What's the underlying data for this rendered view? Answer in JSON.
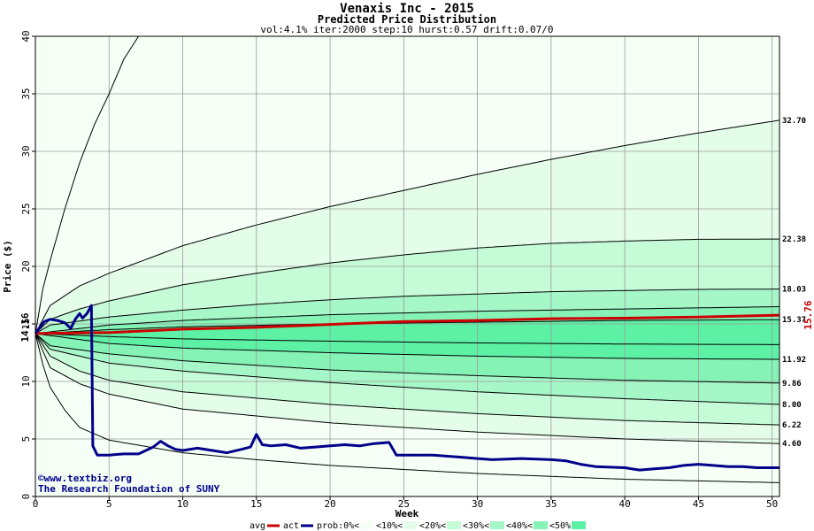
{
  "chart_data": {
    "type": "area",
    "title": "Venaxis Inc - 2015",
    "subtitle": "Predicted Price Distribution",
    "params": "vol:4.1% iter:2000 step:10 hurst:0.57 drift:0.07/0",
    "xlabel": "Week",
    "ylabel": "Price ($)",
    "xlim": [
      0,
      50.5
    ],
    "ylim": [
      0,
      40
    ],
    "x_ticks": [
      0,
      5,
      10,
      15,
      20,
      25,
      30,
      35,
      40,
      45,
      50
    ],
    "y_ticks": [
      0,
      5,
      10,
      15,
      20,
      25,
      30,
      35,
      40
    ],
    "grid": true,
    "start_price_label": "14.16",
    "start_price": 14.16,
    "actual_last_label": "15.76",
    "band_colors": [
      "#f5fff5",
      "#e3fde9",
      "#c6fbd8",
      "#a6f7c8",
      "#86f3b6",
      "#5cf1a4"
    ],
    "percentile_curves": [
      {
        "label": "",
        "points": [
          [
            0,
            14.16
          ],
          [
            0.5,
            18
          ],
          [
            1,
            20.5
          ],
          [
            2,
            25
          ],
          [
            3,
            29
          ],
          [
            4,
            32.3
          ],
          [
            5,
            35
          ],
          [
            6,
            38
          ],
          [
            7,
            40
          ]
        ]
      },
      {
        "label": "32.70",
        "points": [
          [
            0,
            14.16
          ],
          [
            1,
            16.6
          ],
          [
            3,
            18.3
          ],
          [
            5,
            19.4
          ],
          [
            10,
            21.8
          ],
          [
            15,
            23.6
          ],
          [
            20,
            25.2
          ],
          [
            25,
            26.6
          ],
          [
            30,
            28
          ],
          [
            35,
            29.3
          ],
          [
            40,
            30.5
          ],
          [
            45,
            31.6
          ],
          [
            50.5,
            32.7
          ]
        ]
      },
      {
        "label": "22.38",
        "points": [
          [
            0,
            14.16
          ],
          [
            1,
            15.4
          ],
          [
            3,
            16.3
          ],
          [
            5,
            17
          ],
          [
            10,
            18.4
          ],
          [
            15,
            19.4
          ],
          [
            20,
            20.3
          ],
          [
            25,
            21
          ],
          [
            30,
            21.6
          ],
          [
            35,
            22
          ],
          [
            40,
            22.2
          ],
          [
            45,
            22.35
          ],
          [
            50.5,
            22.38
          ]
        ]
      },
      {
        "label": "18.03",
        "points": [
          [
            0,
            14.16
          ],
          [
            1,
            14.9
          ],
          [
            5,
            15.6
          ],
          [
            10,
            16.2
          ],
          [
            15,
            16.7
          ],
          [
            20,
            17.1
          ],
          [
            25,
            17.4
          ],
          [
            30,
            17.6
          ],
          [
            35,
            17.8
          ],
          [
            40,
            17.9
          ],
          [
            45,
            18
          ],
          [
            50.5,
            18.03
          ]
        ]
      },
      {
        "label": "",
        "points": [
          [
            0,
            14.16
          ],
          [
            5,
            14.9
          ],
          [
            10,
            15.3
          ],
          [
            20,
            15.8
          ],
          [
            30,
            16.1
          ],
          [
            40,
            16.3
          ],
          [
            50.5,
            16.5
          ]
        ]
      },
      {
        "label": "15.37",
        "points": [
          [
            0,
            14.16
          ],
          [
            5,
            14.5
          ],
          [
            10,
            14.75
          ],
          [
            20,
            15
          ],
          [
            30,
            15.15
          ],
          [
            40,
            15.3
          ],
          [
            50.5,
            15.37
          ]
        ]
      },
      {
        "label": "",
        "points": [
          [
            0,
            14.16
          ],
          [
            5,
            13.9
          ],
          [
            10,
            13.7
          ],
          [
            20,
            13.5
          ],
          [
            30,
            13.35
          ],
          [
            40,
            13.25
          ],
          [
            50.5,
            13.2
          ]
        ]
      },
      {
        "label": "11.92",
        "points": [
          [
            0,
            14.16
          ],
          [
            5,
            13.3
          ],
          [
            10,
            12.9
          ],
          [
            20,
            12.5
          ],
          [
            30,
            12.2
          ],
          [
            40,
            12
          ],
          [
            50.5,
            11.92
          ]
        ]
      },
      {
        "label": "9.86",
        "points": [
          [
            0,
            14.16
          ],
          [
            1,
            13.1
          ],
          [
            5,
            12.4
          ],
          [
            10,
            11.8
          ],
          [
            20,
            11
          ],
          [
            30,
            10.5
          ],
          [
            40,
            10.1
          ],
          [
            50.5,
            9.86
          ]
        ]
      },
      {
        "label": "8.00",
        "points": [
          [
            0,
            14.16
          ],
          [
            1,
            12.8
          ],
          [
            5,
            11.6
          ],
          [
            10,
            10.9
          ],
          [
            20,
            9.9
          ],
          [
            30,
            9.1
          ],
          [
            40,
            8.5
          ],
          [
            50.5,
            8.0
          ]
        ]
      },
      {
        "label": "6.22",
        "points": [
          [
            0,
            14.16
          ],
          [
            1,
            12.2
          ],
          [
            3,
            10.9
          ],
          [
            5,
            10.1
          ],
          [
            10,
            9.1
          ],
          [
            20,
            8
          ],
          [
            30,
            7.2
          ],
          [
            40,
            6.6
          ],
          [
            50.5,
            6.22
          ]
        ]
      },
      {
        "label": "4.60",
        "points": [
          [
            0,
            14.16
          ],
          [
            1,
            11.2
          ],
          [
            3,
            9.8
          ],
          [
            5,
            8.9
          ],
          [
            10,
            7.6
          ],
          [
            20,
            6.4
          ],
          [
            30,
            5.6
          ],
          [
            40,
            5
          ],
          [
            50.5,
            4.6
          ]
        ]
      },
      {
        "label": "",
        "points": [
          [
            0,
            14.16
          ],
          [
            0.5,
            11.5
          ],
          [
            1,
            9.5
          ],
          [
            2,
            7.5
          ],
          [
            3,
            6
          ],
          [
            5,
            4.9
          ],
          [
            10,
            3.8
          ],
          [
            15,
            3.2
          ],
          [
            20,
            2.7
          ],
          [
            30,
            2
          ],
          [
            40,
            1.5
          ],
          [
            50.5,
            1.2
          ]
        ]
      }
    ],
    "series": [
      {
        "name": "avg",
        "color": "#cc0000",
        "points": [
          [
            0,
            14.16
          ],
          [
            5,
            14.25
          ],
          [
            10,
            14.55
          ],
          [
            15,
            14.7
          ],
          [
            20,
            14.95
          ],
          [
            25,
            15.2
          ],
          [
            30,
            15.3
          ],
          [
            35,
            15.45
          ],
          [
            40,
            15.5
          ],
          [
            45,
            15.6
          ],
          [
            50.5,
            15.76
          ]
        ]
      },
      {
        "name": "act",
        "color": "#00008b",
        "points": [
          [
            0,
            14.16
          ],
          [
            0.3,
            14.7
          ],
          [
            0.6,
            15.2
          ],
          [
            1,
            15.4
          ],
          [
            1.5,
            15.3
          ],
          [
            2,
            15.1
          ],
          [
            2.4,
            14.6
          ],
          [
            2.7,
            15.4
          ],
          [
            3,
            15.9
          ],
          [
            3.2,
            15.5
          ],
          [
            3.5,
            15.9
          ],
          [
            3.8,
            16.6
          ],
          [
            3.85,
            10.6
          ],
          [
            3.9,
            4.4
          ],
          [
            4.2,
            3.6
          ],
          [
            5,
            3.6
          ],
          [
            6,
            3.7
          ],
          [
            7,
            3.7
          ],
          [
            8,
            4.3
          ],
          [
            8.5,
            4.8
          ],
          [
            9,
            4.4
          ],
          [
            9.5,
            4.1
          ],
          [
            10,
            4.0
          ],
          [
            11,
            4.2
          ],
          [
            12,
            4.0
          ],
          [
            13,
            3.8
          ],
          [
            14,
            4.1
          ],
          [
            14.6,
            4.3
          ],
          [
            15,
            5.4
          ],
          [
            15.4,
            4.5
          ],
          [
            16,
            4.4
          ],
          [
            17,
            4.5
          ],
          [
            18,
            4.2
          ],
          [
            19,
            4.3
          ],
          [
            20,
            4.4
          ],
          [
            21,
            4.5
          ],
          [
            22,
            4.4
          ],
          [
            23,
            4.6
          ],
          [
            24,
            4.7
          ],
          [
            24.5,
            3.6
          ],
          [
            25,
            3.6
          ],
          [
            27,
            3.6
          ],
          [
            29,
            3.4
          ],
          [
            30,
            3.3
          ],
          [
            31,
            3.2
          ],
          [
            33,
            3.3
          ],
          [
            35,
            3.2
          ],
          [
            36,
            3.1
          ],
          [
            37,
            2.8
          ],
          [
            38,
            2.6
          ],
          [
            40,
            2.5
          ],
          [
            41,
            2.3
          ],
          [
            42,
            2.4
          ],
          [
            43,
            2.5
          ],
          [
            44,
            2.7
          ],
          [
            45,
            2.8
          ],
          [
            46,
            2.7
          ],
          [
            47,
            2.6
          ],
          [
            48,
            2.6
          ],
          [
            49,
            2.5
          ],
          [
            50.5,
            2.5
          ]
        ]
      }
    ],
    "credit": [
      "©www.textbiz.org",
      "The Research Foundation of SUNY"
    ],
    "legend": {
      "line_items": [
        {
          "label": "avg",
          "color": "#cc0000"
        },
        {
          "label": "act",
          "color": "#00008b"
        }
      ],
      "band_items": [
        {
          "label": "prob:0%<",
          "color": "#f5fff5"
        },
        {
          "label": "<10%<",
          "color": "#e3fde9"
        },
        {
          "label": "<20%<",
          "color": "#c6fbd8"
        },
        {
          "label": "<30%<",
          "color": "#a6f7c8"
        },
        {
          "label": "<40%<",
          "color": "#86f3b6"
        },
        {
          "label": "<50%",
          "color": "#5cf1a4"
        }
      ]
    }
  }
}
